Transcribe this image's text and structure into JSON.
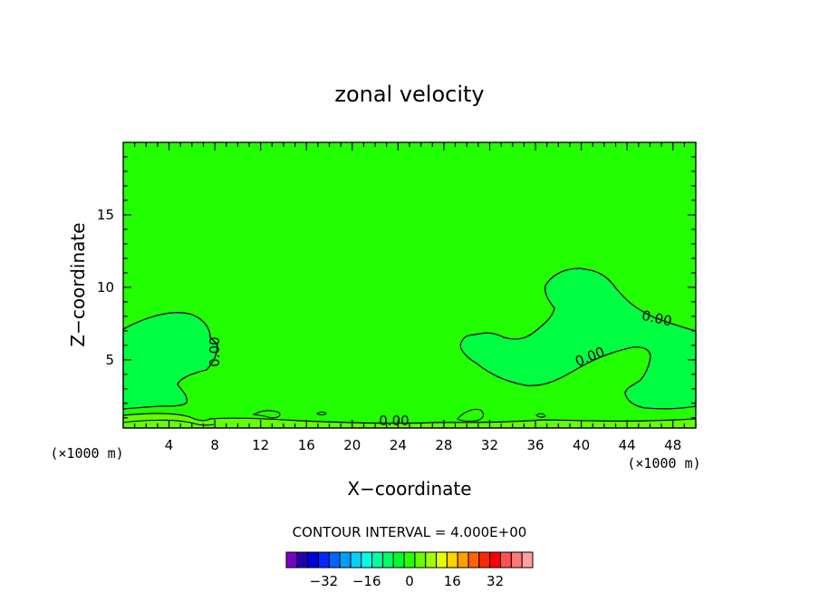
{
  "chart_data": {
    "type": "contour",
    "title": "zonal velocity",
    "xlabel": "X−coordinate",
    "ylabel": "Z−coordinate",
    "x_unit_label": "(×1000 m)",
    "y_unit_label": "(×1000 m)",
    "xlim": [
      0,
      50
    ],
    "ylim": [
      0.3,
      20
    ],
    "x_ticks": [
      4,
      8,
      12,
      16,
      20,
      24,
      28,
      32,
      36,
      40,
      44,
      48
    ],
    "y_ticks": [
      5,
      10,
      15
    ],
    "contour_interval_text": "CONTOUR INTERVAL = 4.000E+00",
    "contour_labels": [
      "0.00",
      "0.00",
      "0.00",
      "0.00"
    ],
    "colorbar": {
      "tick_labels": [
        "−32",
        "−16",
        "0",
        "16",
        "32"
      ],
      "tick_values": [
        -32,
        -16,
        0,
        16,
        32
      ],
      "colors": [
        "#7a00c8",
        "#2200b4",
        "#0000d8",
        "#0028ff",
        "#0064ff",
        "#00a0ff",
        "#00d2ff",
        "#00ffe6",
        "#00ffaa",
        "#00ff64",
        "#00ff28",
        "#28ff00",
        "#64ff00",
        "#a0ff00",
        "#e6ff00",
        "#ffd200",
        "#ffa000",
        "#ff6400",
        "#ff2800",
        "#ff0000",
        "#ff5050",
        "#ff7878",
        "#ffa0a0"
      ]
    },
    "field_colors": {
      "background": "#22ff00",
      "negative_region": "#00ff40",
      "near_surface": "#64ff00"
    },
    "grid": false
  }
}
